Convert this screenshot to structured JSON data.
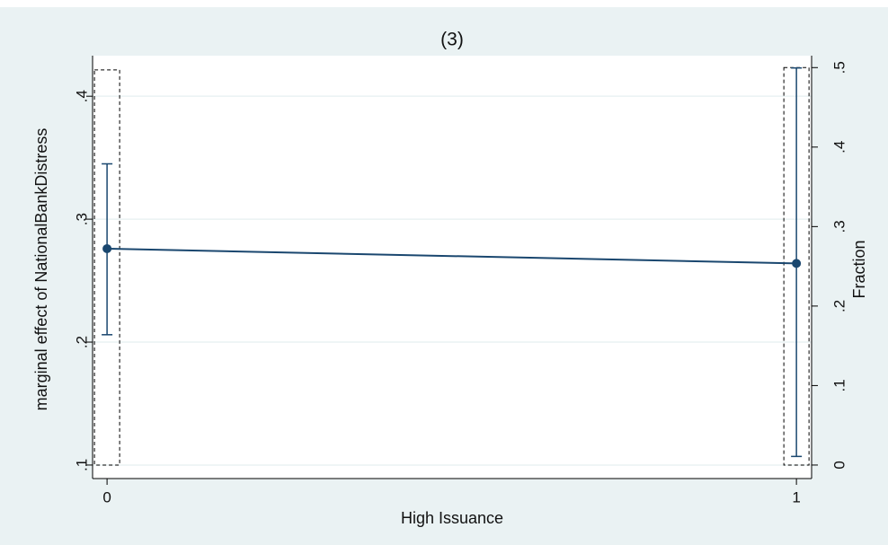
{
  "chart_data": {
    "type": "line",
    "title": "(3)",
    "x_label": "High Issuance",
    "y_label": "marginal effect of NationalBankDistress",
    "y2_label": "Fraction",
    "x": [
      0,
      1
    ],
    "xlim": [
      -0.021,
      1.022
    ],
    "xticks": [
      0,
      1
    ],
    "ylim": [
      0.089,
      0.433
    ],
    "yticks": [
      {
        "value": 0.1,
        "label": ".1"
      },
      {
        "value": 0.2,
        "label": ".2"
      },
      {
        "value": 0.3,
        "label": ".3"
      },
      {
        "value": 0.4,
        "label": ".4"
      }
    ],
    "y2lim": [
      -0.017,
      0.515
    ],
    "y2ticks": [
      0,
      {
        "value": 0.1,
        "label": ".1"
      },
      {
        "value": 0.2,
        "label": ".2"
      },
      {
        "value": 0.3,
        "label": ".3"
      },
      {
        "value": 0.4,
        "label": ".4"
      },
      {
        "value": 0.5,
        "label": ".5"
      }
    ],
    "grid": true,
    "series": [
      {
        "type": "line",
        "color": "#1a476f",
        "values": [
          0.276,
          0.264
        ],
        "ci_low": [
          0.206,
          0.107
        ],
        "ci_high": [
          0.345,
          0.423
        ]
      },
      {
        "type": "bar",
        "axis": "y2",
        "color": "#000000",
        "values": [
          0.497,
          0.5
        ]
      }
    ]
  }
}
